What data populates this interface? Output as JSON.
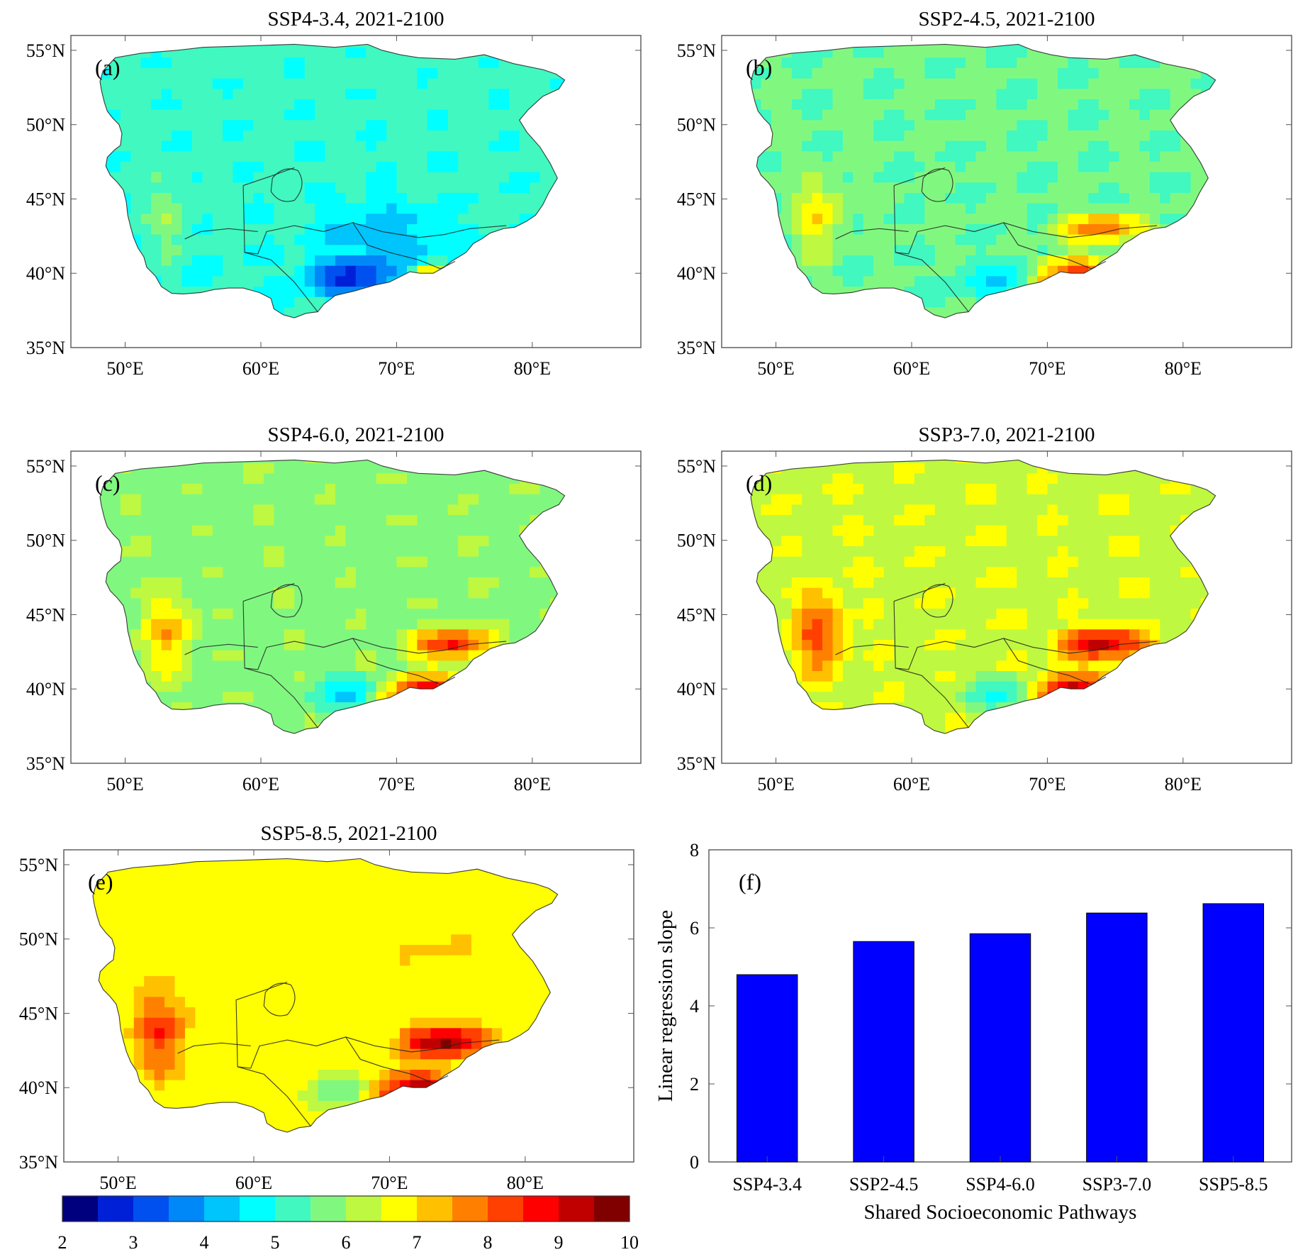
{
  "figure": {
    "maps": [
      {
        "id": "a",
        "label": "(a)",
        "title": "SSP4-3.4, 2021-2100"
      },
      {
        "id": "b",
        "label": "(b)",
        "title": "SSP2-4.5, 2021-2100"
      },
      {
        "id": "c",
        "label": "(c)",
        "title": "SSP4-6.0, 2021-2100"
      },
      {
        "id": "d",
        "label": "(d)",
        "title": "SSP3-7.0, 2021-2100"
      },
      {
        "id": "e",
        "label": "(e)",
        "title": "SSP5-8.5, 2021-2100"
      }
    ],
    "lat_ticks": [
      "55°N",
      "50°N",
      "45°N",
      "40°N",
      "35°N"
    ],
    "lon_ticks": [
      "50°E",
      "60°E",
      "70°E",
      "80°E"
    ],
    "lat_range": [
      35,
      56
    ],
    "lon_range": [
      46,
      88
    ],
    "colorbar": {
      "ticks": [
        "2",
        "3",
        "4",
        "5",
        "6",
        "7",
        "8",
        "9",
        "10"
      ],
      "range": [
        2,
        10
      ],
      "colors": [
        "#00007f",
        "#0020d8",
        "#0050f0",
        "#0088f8",
        "#00c4fc",
        "#00ffff",
        "#40f8c0",
        "#80f880",
        "#bff840",
        "#ffff00",
        "#ffc000",
        "#ff8000",
        "#ff4000",
        "#ff0000",
        "#c00000",
        "#800000"
      ]
    }
  },
  "chart_data": {
    "type": "bar",
    "label": "(f)",
    "categories": [
      "SSP4-3.4",
      "SSP2-4.5",
      "SSP4-6.0",
      "SSP3-7.0",
      "SSP5-8.5"
    ],
    "values": [
      4.8,
      5.65,
      5.85,
      6.38,
      6.62
    ],
    "ylim": [
      0,
      8
    ],
    "yticks": [
      "0",
      "2",
      "4",
      "6",
      "8"
    ],
    "xlabel": "Shared Socioeconomic Pathways",
    "ylabel": "Linear regression slope",
    "bar_color": "#0000ff"
  }
}
